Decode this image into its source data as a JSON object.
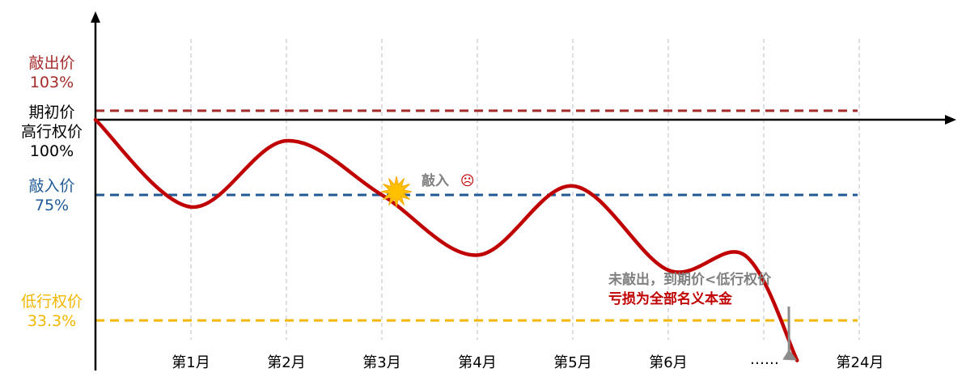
{
  "chart_data": {
    "type": "line",
    "x_ticks": [
      "第1月",
      "第2月",
      "第3月",
      "第4月",
      "第5月",
      "第6月",
      "……",
      "第24月"
    ],
    "levels": [
      {
        "name": "敲出价",
        "value_label": "103%",
        "value": 103,
        "color": "#a52a2a"
      },
      {
        "name_lines": [
          "期初价",
          "高行权价"
        ],
        "value_label": "100%",
        "value": 100,
        "color": "#000000"
      },
      {
        "name": "敲入价",
        "value_label": "75%",
        "value": 75,
        "color": "#1f5a96"
      },
      {
        "name": "低行权价",
        "value_label": "33.3%",
        "value": 33.3,
        "color": "#f2b700"
      }
    ],
    "price_path": {
      "color": "#c00000",
      "points": [
        [
          0,
          100
        ],
        [
          1,
          71
        ],
        [
          2,
          93
        ],
        [
          3,
          75
        ],
        [
          4,
          55
        ],
        [
          5,
          78
        ],
        [
          6,
          50
        ],
        [
          6.8,
          55
        ],
        [
          7.35,
          20
        ]
      ]
    },
    "knock_in": {
      "label": "敲入",
      "emoji": "☹",
      "at_x": 3,
      "value": 75
    },
    "final_note": {
      "line1": "未敲出，到期价<低行权价",
      "line2": "亏损为全部名义本金",
      "line1_color": "#808080",
      "line2_color": "#c00000"
    }
  }
}
